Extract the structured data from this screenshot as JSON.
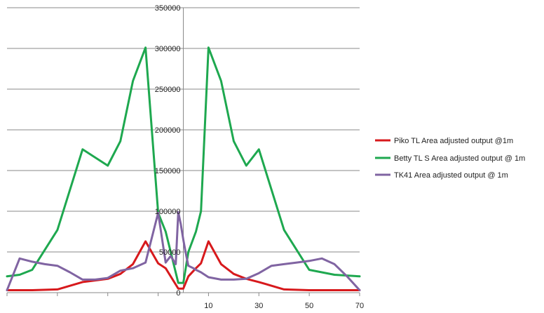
{
  "chart_data": {
    "type": "line",
    "title": "",
    "xlabel": "",
    "ylabel": "",
    "ylim": [
      0,
      350000
    ],
    "yticks": [
      0,
      50000,
      100000,
      150000,
      200000,
      250000,
      300000,
      350000
    ],
    "ytick_labels": [
      "0",
      "50000",
      "100000",
      "150000",
      "200000",
      "250000",
      "300000",
      "350000"
    ],
    "xlim": [
      -70,
      70
    ],
    "xticks_labeled": [
      10,
      30,
      50,
      70
    ],
    "xtick_labels": [
      "10",
      "30",
      "50",
      "70"
    ],
    "xticks_unlabeled": [
      -70,
      -50,
      -30,
      -10
    ],
    "grid": "horizontal",
    "legend_position": "right",
    "series": [
      {
        "name": "Piko TL Area adjusted output @1m",
        "color": "#d7191c",
        "x": [
          -70,
          -60,
          -50,
          -40,
          -30,
          -25,
          -20,
          -15,
          -10,
          -7,
          -5,
          -2,
          0,
          2,
          5,
          7,
          10,
          15,
          20,
          25,
          30,
          40,
          50,
          60,
          70
        ],
        "y": [
          3000,
          3000,
          4000,
          13000,
          17000,
          23000,
          35000,
          63000,
          36000,
          30000,
          20000,
          5000,
          5000,
          20000,
          30000,
          36000,
          63000,
          35000,
          23000,
          17000,
          13000,
          4000,
          3000,
          3000,
          3000
        ]
      },
      {
        "name": "Betty TL S Area adjusted output @ 1m",
        "color": "#1ea84f",
        "x": [
          -70,
          -65,
          -60,
          -50,
          -40,
          -30,
          -25,
          -20,
          -15,
          -10,
          -7,
          -5,
          -2,
          0,
          2,
          5,
          7,
          10,
          15,
          20,
          25,
          30,
          40,
          50,
          60,
          70
        ],
        "y": [
          20000,
          22000,
          28000,
          77000,
          176000,
          156000,
          186000,
          260000,
          301000,
          98000,
          75000,
          50000,
          12000,
          12000,
          50000,
          75000,
          100000,
          301000,
          260000,
          186000,
          156000,
          176000,
          77000,
          28000,
          22000,
          20000
        ]
      },
      {
        "name": "TK41 Area adjusted output @ 1m",
        "color": "#8064a2",
        "x": [
          -70,
          -65,
          -60,
          -55,
          -50,
          -45,
          -40,
          -35,
          -30,
          -25,
          -20,
          -15,
          -10,
          -7,
          -5,
          -4,
          -3,
          -2,
          -1,
          0,
          1,
          2,
          4,
          5,
          7,
          10,
          15,
          20,
          25,
          30,
          35,
          40,
          45,
          50,
          55,
          60,
          65,
          70
        ],
        "y": [
          3000,
          42000,
          38000,
          35000,
          33000,
          25000,
          16000,
          16000,
          18000,
          27000,
          30000,
          37000,
          98000,
          37000,
          45000,
          40000,
          35000,
          99000,
          84000,
          65000,
          48000,
          33000,
          30000,
          28000,
          25000,
          19000,
          16000,
          16000,
          17000,
          24000,
          33000,
          35000,
          37000,
          39000,
          42000,
          35000,
          20000,
          3000
        ]
      }
    ]
  }
}
